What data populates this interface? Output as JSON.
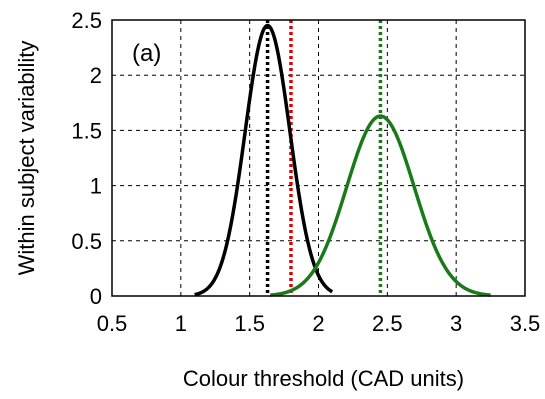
{
  "chart_data": {
    "type": "line",
    "panel_label": "(a)",
    "title": "",
    "xlabel": "Colour threshold (CAD units)",
    "ylabel": "Within subject variability",
    "xlim": [
      0.5,
      3.5
    ],
    "ylim": [
      0,
      2.5
    ],
    "xticks": [
      "0.5",
      "1",
      "1.5",
      "2",
      "2.5",
      "3",
      "3.5"
    ],
    "yticks": [
      "0",
      "0.5",
      "1",
      "1.5",
      "2",
      "2.5"
    ],
    "grid": true,
    "grid_style": "dashed",
    "series": [
      {
        "color": "#000000",
        "curve": "gaussian",
        "mean": 1.63,
        "sd": 0.163,
        "peak": 2.45,
        "x_range": [
          1.1,
          2.1
        ]
      },
      {
        "color": "#1a7a1a",
        "curve": "gaussian",
        "mean": 2.45,
        "sd": 0.245,
        "peak": 1.63,
        "x_range": [
          1.65,
          3.25
        ]
      }
    ],
    "vertical_lines": [
      {
        "x": 1.63,
        "color": "#000000",
        "style": "dotted"
      },
      {
        "x": 1.8,
        "color": "#e00000",
        "style": "dotted"
      },
      {
        "x": 2.45,
        "color": "#1a7a1a",
        "style": "dotted"
      }
    ]
  }
}
